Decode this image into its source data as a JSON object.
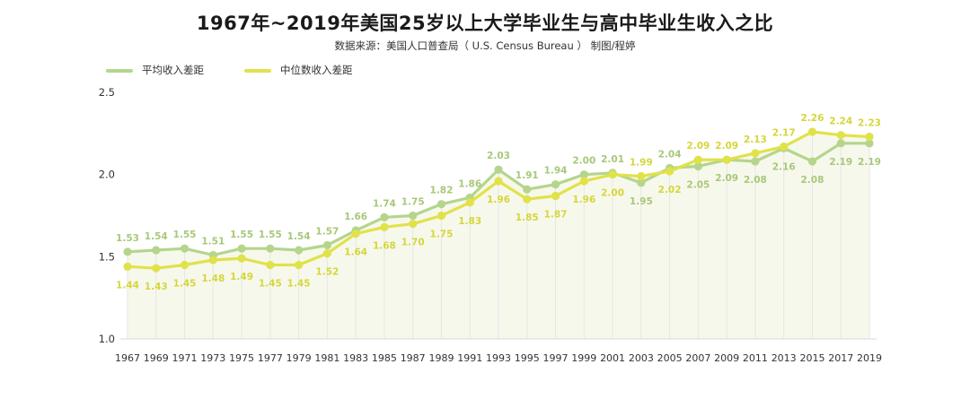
{
  "header": {
    "title": "1967年~2019年美国25岁以上大学毕业生与高中毕业生收入之比",
    "subtitle": "数据来源：美国人口普查局（ U.S. Census Bureau ）   制图/程婷"
  },
  "colors": {
    "mean_line": "#b5d58c",
    "median_line": "#e0e24a",
    "mean_label": "#a7c879",
    "median_label": "#d5d63a",
    "area_fill": "#f7f8ec",
    "axis_text": "#333333",
    "grid": "#e6e6e6"
  },
  "chart_data": {
    "type": "line",
    "x": [
      "1967",
      "1969",
      "1971",
      "1973",
      "1975",
      "1977",
      "1979",
      "1981",
      "1983",
      "1985",
      "1987",
      "1989",
      "1991",
      "1993",
      "1995",
      "1997",
      "1999",
      "2001",
      "2003",
      "2005",
      "2007",
      "2009",
      "2011",
      "2013",
      "2015",
      "2017",
      "2019"
    ],
    "ylim": [
      1.0,
      2.5
    ],
    "yticks": [
      "1.0",
      "1.5",
      "2.0",
      "2.5"
    ],
    "legend_position": "top-left",
    "grid": "vertical lines at each x category",
    "series": [
      {
        "name": "平均收入差距",
        "labels": [
          "1.53",
          "1.54",
          "1.55",
          "1.51",
          "1.55",
          "1.55",
          "1.54",
          "1.57",
          "1.66",
          "1.74",
          "1.75",
          "1.82",
          "1.86",
          "2.03",
          "1.91",
          "1.94",
          "2.00",
          "2.01",
          "1.95",
          "2.04",
          "2.05",
          "2.09",
          "2.08",
          "2.16",
          "2.08",
          "2.19",
          "2.19"
        ],
        "values": [
          1.53,
          1.54,
          1.55,
          1.51,
          1.55,
          1.55,
          1.54,
          1.57,
          1.66,
          1.74,
          1.75,
          1.82,
          1.86,
          2.03,
          1.91,
          1.94,
          2.0,
          2.01,
          1.95,
          2.04,
          2.05,
          2.09,
          2.08,
          2.16,
          2.08,
          2.19,
          2.19
        ],
        "label_position": [
          "top",
          "top",
          "top",
          "top",
          "top",
          "top",
          "top",
          "top",
          "top",
          "top",
          "top",
          "top",
          "top",
          "top",
          "top",
          "top",
          "top",
          "top",
          "bottom",
          "top",
          "bottom",
          "bottom",
          "bottom",
          "bottom",
          "bottom",
          "bottom",
          "bottom"
        ]
      },
      {
        "name": "中位数收入差距",
        "labels": [
          "1.44",
          "1.43",
          "1.45",
          "1.48",
          "1.49",
          "1.45",
          "1.45",
          "1.52",
          "1.64",
          "1.68",
          "1.70",
          "1.75",
          "1.83",
          "1.96",
          "1.85",
          "1.87",
          "1.96",
          "2.00",
          "1.99",
          "2.02",
          "2.09",
          "2.09",
          "2.13",
          "2.17",
          "2.26",
          "2.24",
          "2.23"
        ],
        "values": [
          1.44,
          1.43,
          1.45,
          1.48,
          1.49,
          1.45,
          1.45,
          1.52,
          1.64,
          1.68,
          1.7,
          1.75,
          1.83,
          1.96,
          1.85,
          1.87,
          1.96,
          2.0,
          1.99,
          2.02,
          2.09,
          2.09,
          2.13,
          2.17,
          2.26,
          2.24,
          2.23
        ],
        "label_position": [
          "bottom",
          "bottom",
          "bottom",
          "bottom",
          "bottom",
          "bottom",
          "bottom",
          "bottom",
          "bottom",
          "bottom",
          "bottom",
          "bottom",
          "bottom",
          "bottom",
          "bottom",
          "bottom",
          "bottom",
          "bottom",
          "top",
          "bottom",
          "top",
          "top",
          "top",
          "top",
          "top",
          "top",
          "top"
        ]
      }
    ]
  }
}
